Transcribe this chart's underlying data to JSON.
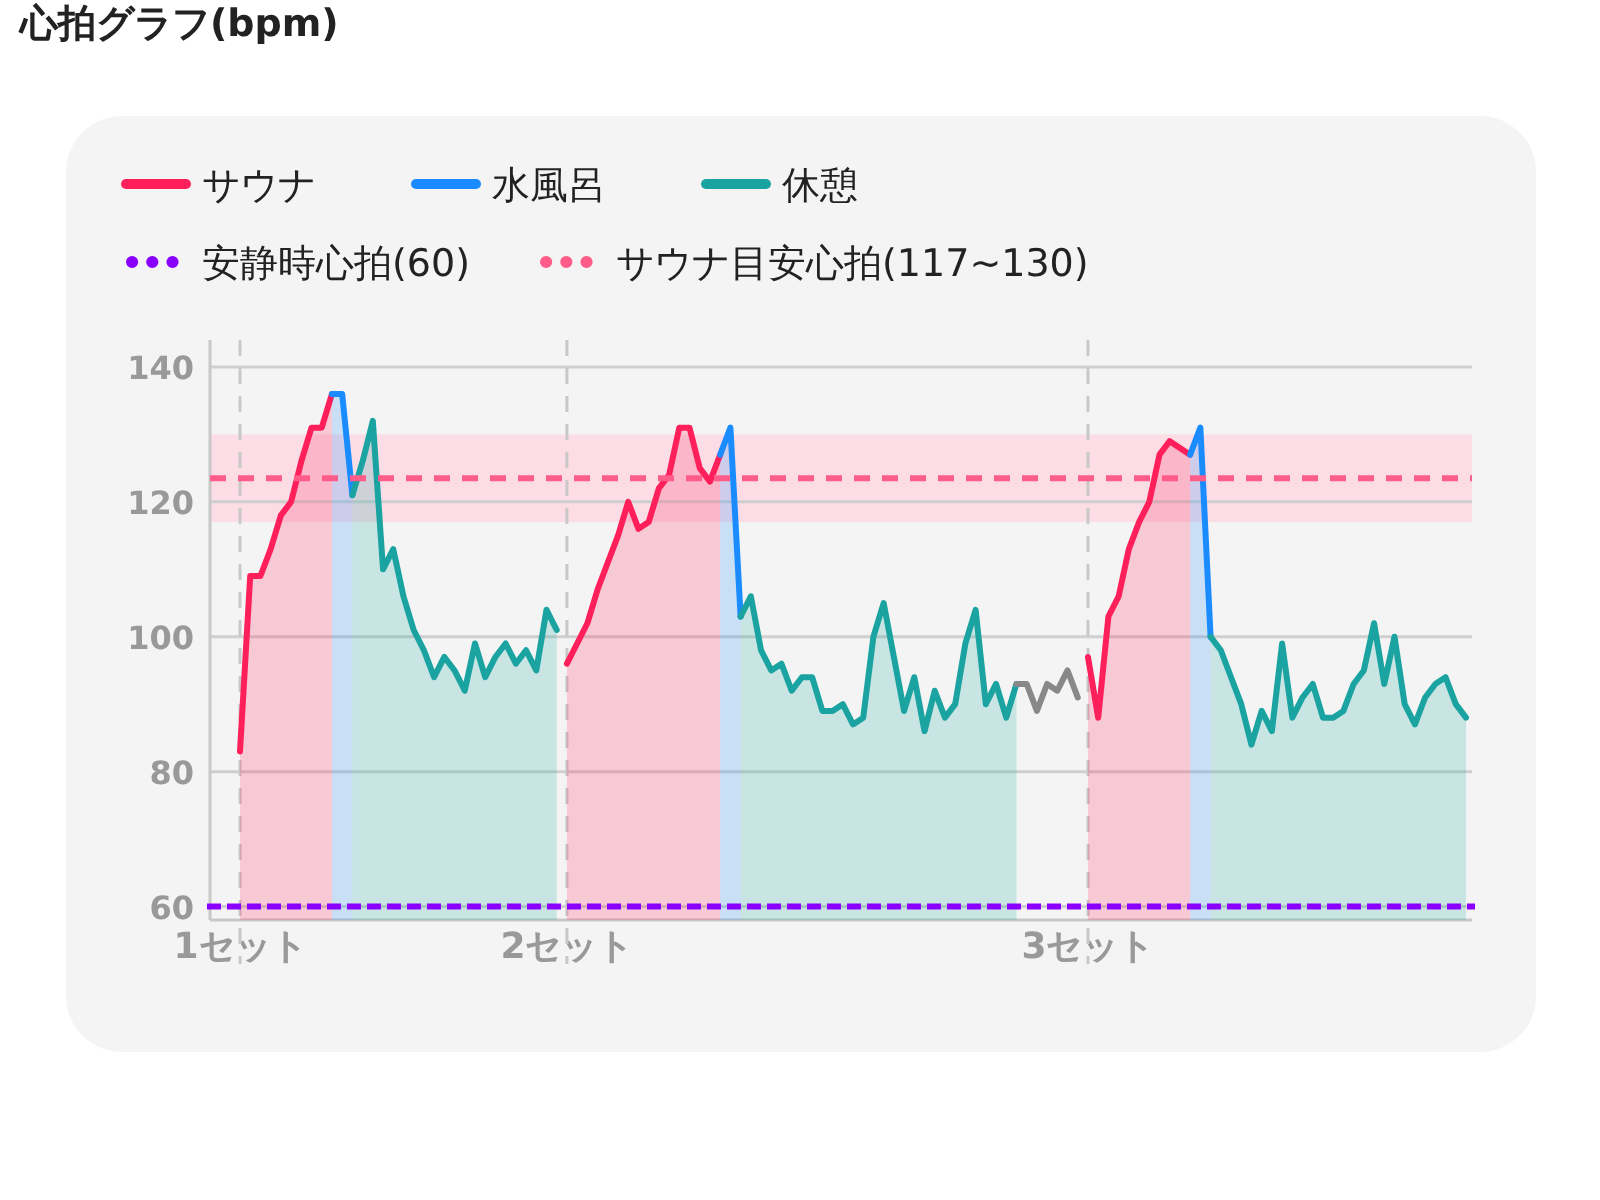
{
  "chart_data": {
    "type": "area",
    "title": "心拍グラフ(bpm)",
    "categories": [
      "1セット",
      null,
      null,
      null,
      null,
      null,
      null,
      null,
      null,
      null,
      null,
      null,
      null,
      null,
      null,
      null,
      null,
      null,
      null,
      null,
      null,
      null,
      null,
      null,
      null,
      null,
      null,
      null,
      null,
      null,
      null,
      null,
      "2セット",
      null,
      null,
      null,
      null,
      null,
      null,
      null,
      null,
      null,
      null,
      null,
      null,
      null,
      null,
      null,
      null,
      null,
      null,
      null,
      null,
      null,
      null,
      null,
      null,
      null,
      null,
      null,
      null,
      null,
      null,
      null,
      null,
      null,
      null,
      null,
      null,
      null,
      null,
      null,
      null,
      null,
      null,
      null,
      null,
      null,
      null,
      null,
      null,
      null,
      null,
      "3セット",
      null,
      null,
      null,
      null,
      null,
      null,
      null,
      null,
      null,
      null,
      null,
      null,
      null,
      null,
      null,
      null,
      null,
      null,
      null,
      null,
      null,
      null,
      null,
      null,
      null,
      null,
      null,
      null,
      null,
      null,
      null,
      null,
      null,
      null,
      null,
      null,
      null
    ],
    "series": [
      {
        "name": "サウナ",
        "type": "area",
        "color": "#ff1f5a",
        "values": [
          83,
          109,
          109,
          113,
          118,
          120,
          126,
          131,
          131,
          136,
          null,
          null,
          null,
          null,
          null,
          null,
          null,
          null,
          null,
          null,
          null,
          null,
          null,
          null,
          null,
          null,
          null,
          null,
          null,
          null,
          null,
          null,
          96,
          99,
          102,
          107,
          111,
          115,
          120,
          116,
          117,
          122,
          124,
          131,
          131,
          125,
          123,
          127,
          null,
          null,
          null,
          null,
          null,
          null,
          null,
          null,
          null,
          null,
          null,
          null,
          null,
          null,
          null,
          null,
          null,
          null,
          null,
          null,
          null,
          null,
          null,
          null,
          null,
          null,
          null,
          null,
          null,
          null,
          null,
          null,
          null,
          null,
          null,
          97,
          88,
          103,
          106,
          113,
          117,
          120,
          127,
          129,
          128,
          127,
          null,
          null,
          null,
          null,
          null,
          null,
          null,
          null,
          null,
          null,
          null,
          null,
          null,
          null,
          null,
          null,
          null,
          null,
          null,
          null,
          null,
          null,
          null,
          null,
          null,
          null,
          null
        ]
      },
      {
        "name": "水風呂",
        "type": "area",
        "color": "#1a8cff",
        "values": [
          null,
          null,
          null,
          null,
          null,
          null,
          null,
          null,
          null,
          136,
          136,
          121,
          null,
          null,
          null,
          null,
          null,
          null,
          null,
          null,
          null,
          null,
          null,
          null,
          null,
          null,
          null,
          null,
          null,
          null,
          null,
          null,
          null,
          null,
          null,
          null,
          null,
          null,
          null,
          null,
          null,
          null,
          null,
          null,
          null,
          null,
          null,
          127,
          131,
          103,
          null,
          null,
          null,
          null,
          null,
          null,
          null,
          null,
          null,
          null,
          null,
          null,
          null,
          null,
          null,
          null,
          null,
          null,
          null,
          null,
          null,
          null,
          null,
          null,
          null,
          null,
          null,
          null,
          null,
          null,
          null,
          null,
          null,
          null,
          null,
          null,
          null,
          null,
          null,
          null,
          null,
          null,
          null,
          127,
          131,
          100,
          null,
          null,
          null,
          null,
          null,
          null,
          null,
          null,
          null,
          null,
          null,
          null,
          null,
          null,
          null,
          null,
          null,
          null,
          null,
          null,
          null,
          null,
          null,
          null,
          null
        ]
      },
      {
        "name": "休憩",
        "type": "area",
        "color": "#1aa3a0",
        "values": [
          null,
          null,
          null,
          null,
          null,
          null,
          null,
          null,
          null,
          null,
          null,
          121,
          126,
          132,
          110,
          113,
          106,
          101,
          98,
          94,
          97,
          95,
          92,
          99,
          94,
          97,
          99,
          96,
          98,
          95,
          104,
          101,
          null,
          null,
          null,
          null,
          null,
          null,
          null,
          null,
          null,
          null,
          null,
          null,
          null,
          null,
          null,
          null,
          null,
          103,
          106,
          98,
          95,
          96,
          92,
          94,
          94,
          89,
          89,
          90,
          87,
          88,
          100,
          105,
          97,
          89,
          94,
          86,
          92,
          88,
          90,
          99,
          104,
          90,
          93,
          88,
          93,
          null,
          null,
          null,
          null,
          null,
          null,
          null,
          null,
          null,
          null,
          null,
          null,
          null,
          null,
          null,
          null,
          null,
          null,
          100,
          98,
          94,
          90,
          84,
          89,
          86,
          99,
          88,
          91,
          93,
          88,
          88,
          89,
          93,
          95,
          102,
          93,
          100,
          90,
          87,
          91,
          93,
          94,
          90,
          88
        ]
      },
      {
        "type": "line",
        "color": "#888888",
        "values": [
          null,
          null,
          null,
          null,
          null,
          null,
          null,
          null,
          null,
          null,
          null,
          null,
          null,
          null,
          null,
          null,
          null,
          null,
          null,
          null,
          null,
          null,
          null,
          null,
          null,
          null,
          null,
          null,
          null,
          null,
          null,
          null,
          null,
          null,
          null,
          null,
          null,
          null,
          null,
          null,
          null,
          null,
          null,
          null,
          null,
          null,
          null,
          null,
          null,
          null,
          null,
          null,
          null,
          null,
          null,
          null,
          null,
          null,
          null,
          null,
          null,
          null,
          null,
          null,
          null,
          null,
          null,
          null,
          null,
          null,
          null,
          null,
          null,
          null,
          null,
          null,
          93,
          93,
          89,
          93,
          92,
          95,
          91,
          null,
          null,
          null,
          null,
          null,
          null,
          null,
          null,
          null,
          null,
          null,
          null,
          null,
          null,
          null,
          null,
          null,
          null,
          null,
          null,
          null,
          null,
          null,
          null,
          null,
          null,
          null,
          null,
          null,
          null,
          null,
          null,
          null,
          null,
          null,
          null,
          null,
          null
        ]
      }
    ],
    "ylim": [
      58,
      144
    ],
    "yticks": [
      60,
      80,
      100,
      120,
      140
    ],
    "grid": "y",
    "legend": "top",
    "bands": [
      {
        "axis": "y",
        "from": 117,
        "to": 130,
        "color": "#fcdde6"
      }
    ],
    "ref_lines": [
      {
        "axis": "y",
        "value": 123.5,
        "label": "サウナ目安心拍(117~130)",
        "color": "#ff5c8a",
        "line_style": "dashed"
      },
      {
        "axis": "y",
        "value": 60,
        "label": "安静時心拍(60)",
        "color": "#8a00ff",
        "line_style": "dotted"
      },
      {
        "axis": "x",
        "value": "1セット",
        "color": "#c8c8c8",
        "line_style": "dashed"
      },
      {
        "axis": "x",
        "value": "2セット",
        "color": "#c8c8c8",
        "line_style": "dashed"
      },
      {
        "axis": "x",
        "value": "3セット",
        "color": "#c8c8c8",
        "line_style": "dashed"
      }
    ]
  }
}
